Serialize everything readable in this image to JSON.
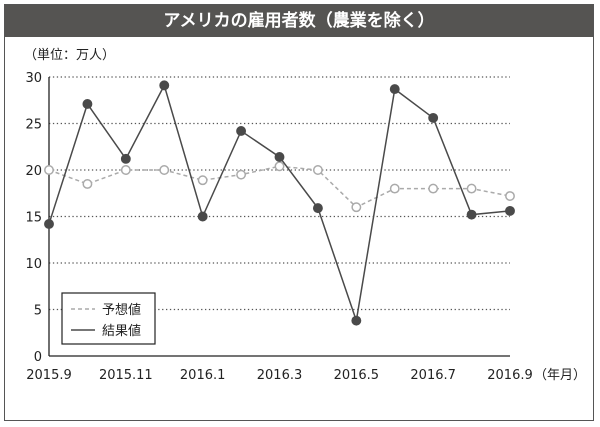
{
  "chart_data": {
    "type": "line",
    "title": "アメリカの雇用者数（農業を除く）",
    "ylabel": "（単位：万人）",
    "xlabel_unit": "（年月）",
    "ylim": [
      0,
      30
    ],
    "yticks": [
      0,
      5,
      10,
      15,
      20,
      25,
      30
    ],
    "x": [
      "2015.9",
      "2015.10",
      "2015.11",
      "2015.12",
      "2016.1",
      "2016.2",
      "2016.3",
      "2016.4",
      "2016.5",
      "2016.6",
      "2016.7",
      "2016.8",
      "2016.9"
    ],
    "xtick_labels": [
      "2015.9",
      "2015.11",
      "2016.1",
      "2016.3",
      "2016.5",
      "2016.7",
      "2016.9"
    ],
    "grid": "horizontal dotted",
    "legend_position": "bottom-left",
    "series": [
      {
        "name": "予想値",
        "style": "dashed",
        "marker": "open-circle",
        "color": "#aaaaaa",
        "values": [
          20.0,
          18.5,
          20.0,
          20.0,
          18.9,
          19.5,
          20.4,
          20.0,
          16.0,
          18.0,
          18.0,
          18.0,
          17.2
        ]
      },
      {
        "name": "結果値",
        "style": "solid",
        "marker": "filled-circle",
        "color": "#4a4a4a",
        "values": [
          14.2,
          27.1,
          21.2,
          29.1,
          15.0,
          24.2,
          21.4,
          15.9,
          3.8,
          28.7,
          25.6,
          15.2,
          15.6
        ]
      }
    ]
  }
}
